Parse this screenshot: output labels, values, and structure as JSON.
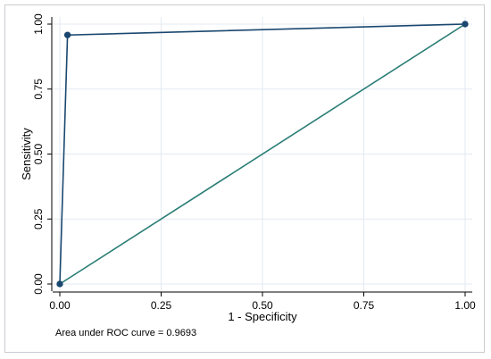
{
  "chart_data": {
    "type": "line",
    "title": "",
    "xlabel": "1 - Specificity",
    "ylabel": "Sensitivity",
    "xlim": [
      0,
      1
    ],
    "ylim": [
      0,
      1
    ],
    "xticks": [
      0,
      0.25,
      0.5,
      0.75,
      1
    ],
    "yticks": [
      0,
      0.25,
      0.5,
      0.75,
      1
    ],
    "xtick_labels": [
      "0.00",
      "0.25",
      "0.50",
      "0.75",
      "1.00"
    ],
    "ytick_labels": [
      "0.00",
      "0.25",
      "0.50",
      "0.75",
      "1.00"
    ],
    "grid": true,
    "series": [
      {
        "kind": "roc-curve",
        "color": "#1a476f",
        "points": [
          {
            "x": 0.0,
            "y": 0.0
          },
          {
            "x": 0.019,
            "y": 0.958
          },
          {
            "x": 1.0,
            "y": 1.0
          }
        ]
      },
      {
        "kind": "reference-line",
        "color": "#2a7d75",
        "points": [
          {
            "x": 0.0,
            "y": 0.0
          },
          {
            "x": 1.0,
            "y": 1.0
          }
        ]
      }
    ],
    "note": "Area under ROC curve = 0.9693"
  },
  "colors": {
    "grid": "#e3eaf0",
    "axis": "#000000",
    "frame": "#c9ccd0"
  }
}
